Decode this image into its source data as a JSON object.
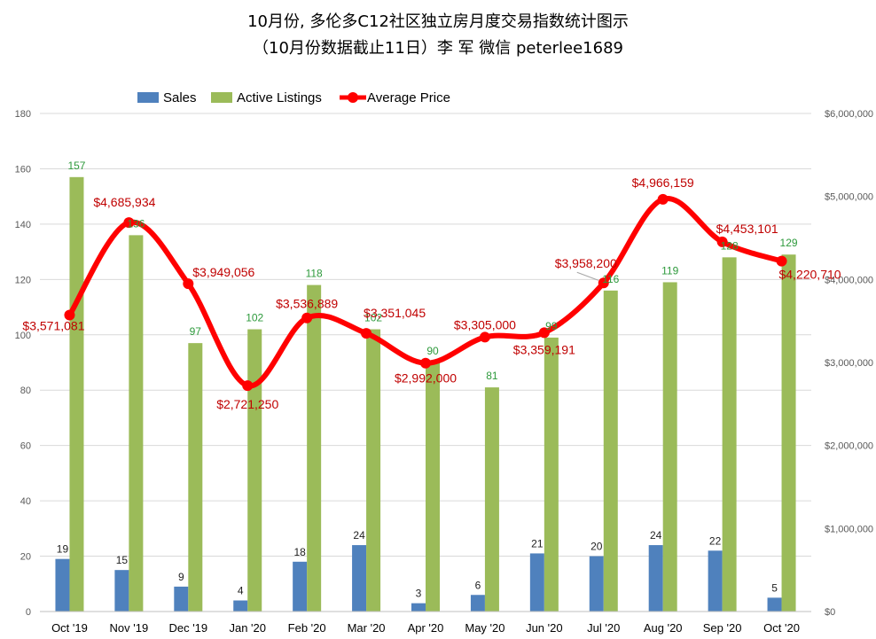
{
  "title_line1": "10月份, 多伦多C12社区独立房月度交易指数统计图示",
  "title_line2": "（10月份数据截止11日）李 军  微信  peterlee1689",
  "colors": {
    "sales": "#4f81bd",
    "listings": "#9bbb59",
    "price": "#ff0000",
    "price_label": "#c00000",
    "listing_label": "#2e9a3c",
    "grid": "#d9d9d9"
  },
  "chart_data": {
    "type": "bar",
    "categories": [
      "Oct '19",
      "Nov '19",
      "Dec '19",
      "Jan '20",
      "Feb '20",
      "Mar '20",
      "Apr '20",
      "May '20",
      "Jun '20",
      "Jul '20",
      "Aug '20",
      "Sep '20",
      "Oct '20"
    ],
    "series": [
      {
        "name": "Sales",
        "type": "bar",
        "axis": "left",
        "values": [
          19,
          15,
          9,
          4,
          18,
          24,
          3,
          6,
          21,
          20,
          24,
          22,
          5
        ]
      },
      {
        "name": "Active Listings",
        "type": "bar",
        "axis": "left",
        "values": [
          157,
          136,
          97,
          102,
          118,
          102,
          90,
          81,
          99,
          116,
          119,
          128,
          129
        ]
      },
      {
        "name": "Average Price",
        "type": "line",
        "axis": "right",
        "values": [
          3571081,
          4685934,
          3949056,
          2721250,
          3536889,
          3351045,
          2992000,
          3305000,
          3359191,
          3958200,
          4966159,
          4453101,
          4220710
        ],
        "labels": [
          "$3,571,081",
          "$4,685,934",
          "$3,949,056",
          "$2,721,250",
          "$3,536,889",
          "$3,351,045",
          "$2,992,000",
          "$3,305,000",
          "$3,359,191",
          "$3,958,200",
          "$4,966,159",
          "$4,453,101",
          "$4,220,710"
        ]
      }
    ],
    "left_axis": {
      "min": 0,
      "max": 180,
      "ticks": [
        0,
        20,
        40,
        60,
        80,
        100,
        120,
        140,
        160,
        180
      ]
    },
    "right_axis": {
      "min": 0,
      "max": 6000000,
      "ticks": [
        0,
        1000000,
        2000000,
        3000000,
        4000000,
        5000000,
        6000000
      ],
      "tick_labels": [
        "$0",
        "$1,000,000",
        "$2,000,000",
        "$3,000,000",
        "$4,000,000",
        "$5,000,000",
        "$6,000,000"
      ]
    },
    "legend": [
      "Sales",
      "Active Listings",
      "Average Price"
    ],
    "legend_position": "top",
    "grid": true
  }
}
